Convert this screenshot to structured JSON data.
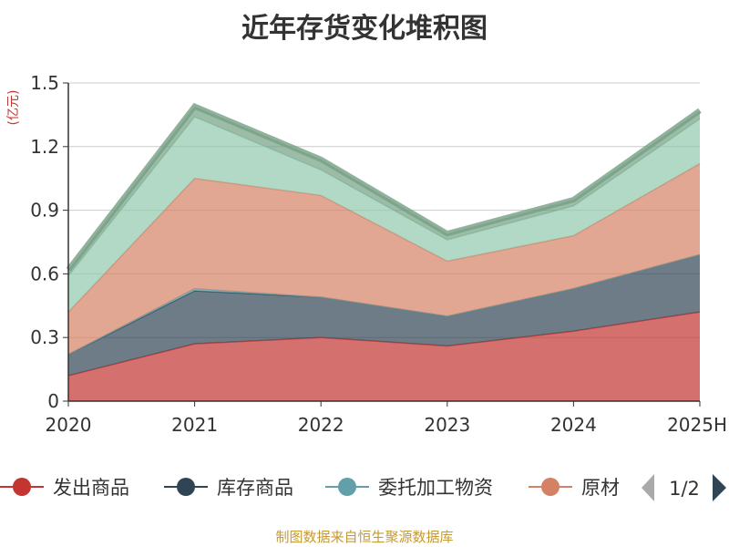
{
  "title": "近年存货变化堆积图",
  "source": "制图数据来自恒生聚源数据库",
  "chart_data": {
    "type": "area",
    "stacked": true,
    "ylabel": "(亿元)",
    "ylim": [
      0,
      1.5
    ],
    "yticks": [
      "0",
      "0.3",
      "0.6",
      "0.9",
      "1.2",
      "1.5"
    ],
    "categories": [
      "2020",
      "2021",
      "2022",
      "2023",
      "2024",
      "2025H"
    ],
    "grid": true,
    "series": [
      {
        "name": "发出商品",
        "color": "#c23531",
        "values": [
          0.12,
          0.27,
          0.3,
          0.26,
          0.33,
          0.42
        ]
      },
      {
        "name": "库存商品",
        "color": "#2f4554",
        "values": [
          0.1,
          0.25,
          0.19,
          0.14,
          0.2,
          0.27
        ]
      },
      {
        "name": "委托加工物资",
        "color": "#61a0a8",
        "values": [
          0.0,
          0.01,
          0.0,
          0.0,
          0.0,
          0.0
        ]
      },
      {
        "name": "原材料",
        "color": "#d48265",
        "values": [
          0.2,
          0.52,
          0.48,
          0.26,
          0.25,
          0.43
        ]
      },
      {
        "name": "",
        "color": "#91c7ae",
        "values": [
          0.17,
          0.29,
          0.12,
          0.1,
          0.14,
          0.21
        ]
      },
      {
        "name": "",
        "color": "#749f83",
        "values": [
          0.03,
          0.05,
          0.05,
          0.03,
          0.03,
          0.04
        ]
      }
    ],
    "legend": {
      "position": "bottom",
      "visible_items": [
        "发出商品",
        "库存商品",
        "委托加工物资",
        "原材"
      ],
      "page": "1/2"
    }
  }
}
